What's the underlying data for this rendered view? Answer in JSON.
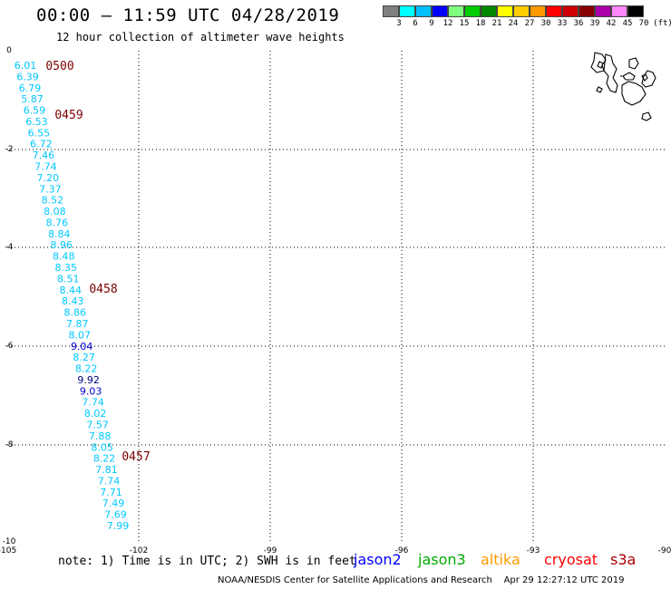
{
  "header": {
    "title": "00:00 — 11:59 UTC 04/28/2019",
    "subtitle": "12 hour collection of altimeter wave heights"
  },
  "scale": {
    "labels": [
      "3",
      "6",
      "9",
      "12",
      "15",
      "18",
      "21",
      "24",
      "27",
      "30",
      "33",
      "36",
      "39",
      "42",
      "45",
      "70"
    ],
    "unit": "(ft)",
    "colors": [
      "#7f7f7f",
      "#00ffff",
      "#00bfff",
      "#0000ff",
      "#7fff7f",
      "#00cc00",
      "#008800",
      "#ffff00",
      "#ffcc00",
      "#ff9900",
      "#ff0000",
      "#cc0000",
      "#880000",
      "#aa00aa",
      "#ff88ff",
      "#000000"
    ]
  },
  "axes": {
    "x_labels": [
      "-105",
      "-102",
      "-99",
      "-96",
      "-93",
      "-90"
    ],
    "y_labels": [
      "0",
      "-2",
      "-4",
      "-6",
      "-8",
      "-10"
    ]
  },
  "track": {
    "values": [
      "6.01",
      "6.39",
      "6.79",
      "5.87",
      "6.59",
      "6.53",
      "6.55",
      "6.72",
      "7.46",
      "7.74",
      "7.20",
      "7.37",
      "8.52",
      "8.08",
      "8.76",
      "8.84",
      "8.96",
      "8.48",
      "8.35",
      "8.51",
      "8.44",
      "8.43",
      "8.86",
      "7.87",
      "8.07",
      "9.04",
      "8.27",
      "8.22",
      "9.92",
      "9.03",
      "7.74",
      "8.02",
      "7.57",
      "7.88",
      "8.05",
      "8.22",
      "7.81",
      "7.74",
      "7.71",
      "7.49",
      "7.69",
      "7.99"
    ],
    "colors": {
      "cyan": "#00c8ff",
      "blue": "#0000cc",
      "dark_blue": "#000080"
    },
    "times": [
      "0500",
      "0459",
      "0458",
      "0457"
    ],
    "time_color": "#7a0000"
  },
  "footer": {
    "note": "note: 1) Time is in UTC; 2) SWH is in feet",
    "satellites": [
      {
        "name": "jason2",
        "color": "#0000ff"
      },
      {
        "name": "jason3",
        "color": "#00aa00"
      },
      {
        "name": "altika",
        "color": "#ff9900"
      },
      {
        "name": "cryosat",
        "color": "#ff0000"
      },
      {
        "name": "s3a",
        "color": "#aa0000"
      }
    ],
    "credit": "NOAA/NESDIS Center for Satellite Applications and Research",
    "generated": "Apr 29 12:27:12 UTC 2019"
  }
}
